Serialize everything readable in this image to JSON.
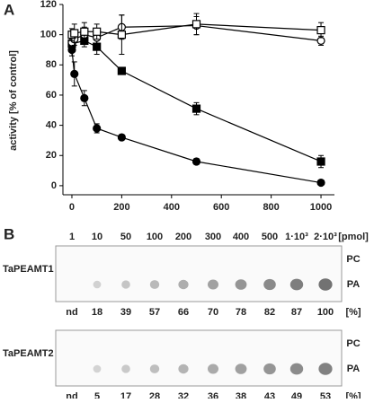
{
  "chart_data": {
    "type": "line",
    "panel_label": "A",
    "y_label": "activity [% of control]",
    "xlim": [
      -36,
      1054
    ],
    "ylim": [
      -6,
      120
    ],
    "xticks": [
      0,
      200,
      400,
      600,
      800,
      1000
    ],
    "yticks": [
      0,
      20,
      40,
      60,
      80,
      100,
      120
    ],
    "series": [
      {
        "color": "#000000",
        "marker": "circle",
        "filled": true,
        "x": [
          0,
          10,
          50,
          100,
          200,
          500,
          1000
        ],
        "values": [
          90,
          74,
          58,
          38,
          32,
          16,
          2
        ],
        "errors": [
          4,
          8,
          5,
          3,
          1,
          2,
          1
        ]
      },
      {
        "color": "#000000",
        "marker": "square",
        "filled": true,
        "x": [
          0,
          50,
          100,
          200,
          500,
          1000
        ],
        "values": [
          94,
          96,
          92,
          76,
          51,
          16
        ],
        "errors": [
          3,
          4,
          5,
          2,
          4,
          4
        ]
      },
      {
        "color": "#000000",
        "marker": "circle",
        "filled": false,
        "x": [
          0,
          10,
          50,
          100,
          200,
          500,
          1000
        ],
        "values": [
          95,
          97,
          100,
          98,
          105,
          106,
          96
        ],
        "errors": [
          3,
          4,
          5,
          4,
          8,
          6,
          3
        ]
      },
      {
        "color": "#000000",
        "marker": "square",
        "filled": false,
        "x": [
          0,
          10,
          50,
          100,
          200,
          500,
          1000
        ],
        "values": [
          100,
          101,
          102,
          102,
          100,
          107,
          103
        ],
        "errors": [
          4,
          6,
          6,
          5,
          13,
          7,
          5
        ]
      }
    ]
  },
  "panel_b": {
    "label": "B",
    "amounts": [
      "1",
      "10",
      "50",
      "100",
      "200",
      "300",
      "400",
      "500",
      "1·10³",
      "2·10³"
    ],
    "amount_unit": "[pmol]",
    "blots": [
      {
        "name": "TaPEAMT1",
        "spot_labels": [
          "PC",
          "PA"
        ],
        "percent": [
          "nd",
          18,
          39,
          57,
          66,
          70,
          78,
          82,
          87,
          100
        ],
        "percent_unit": "[%]"
      },
      {
        "name": "TaPEAMT2",
        "spot_labels": [
          "PC",
          "PA"
        ],
        "percent": [
          "nd",
          5,
          17,
          28,
          32,
          36,
          38,
          43,
          49,
          53
        ],
        "percent_unit": "[%]"
      }
    ]
  }
}
